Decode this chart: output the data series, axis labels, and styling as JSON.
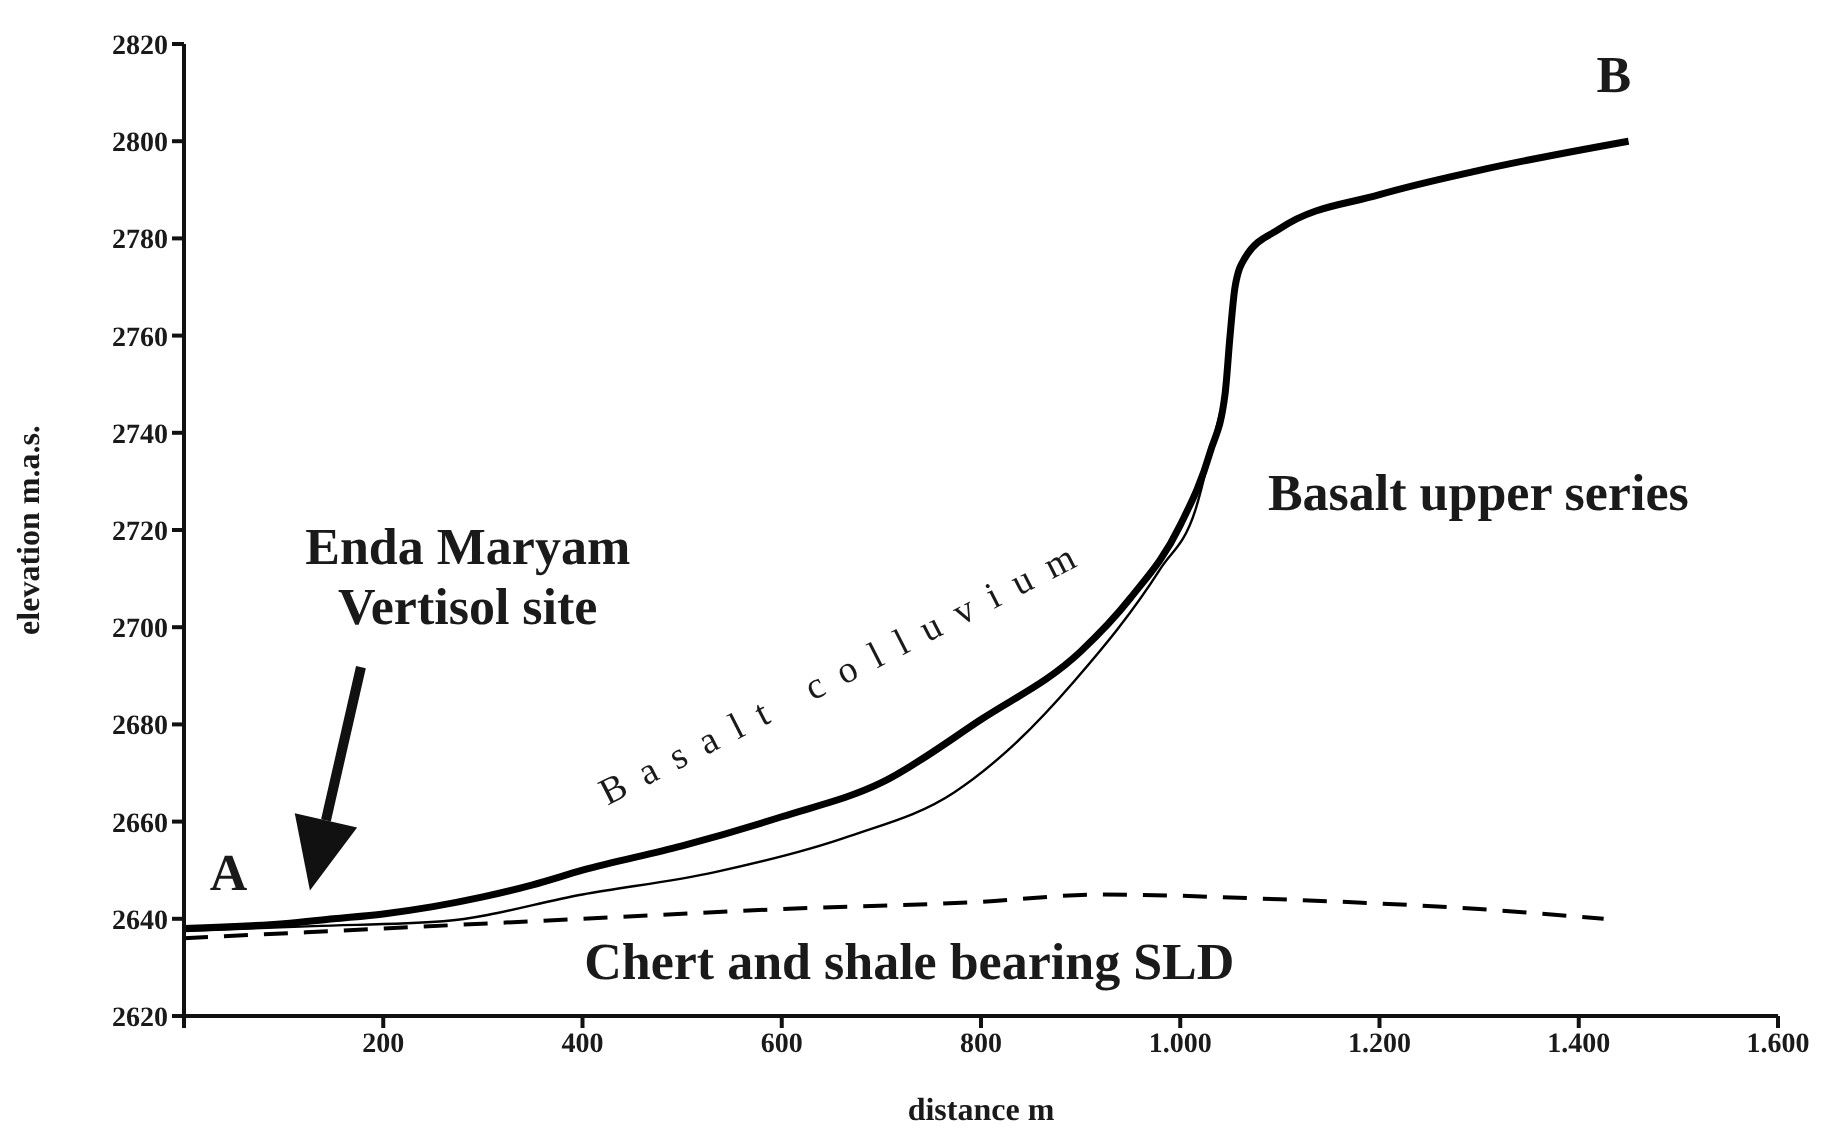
{
  "chart_data": {
    "type": "line",
    "xlabel": "distance m",
    "ylabel": "elevation m.a.s.",
    "xlim": [
      0,
      1600
    ],
    "ylim": [
      2620,
      2820
    ],
    "xticks": [
      {
        "value": 0,
        "label": null
      },
      200,
      400,
      600,
      800,
      {
        "value": 1000,
        "label": "1.000"
      },
      {
        "value": 1200,
        "label": "1.200"
      },
      {
        "value": 1400,
        "label": "1.400"
      },
      {
        "value": 1600,
        "label": "1.600"
      }
    ],
    "yticks": [
      2620,
      2640,
      2660,
      2680,
      2700,
      2720,
      2740,
      2760,
      2780,
      2800,
      2820
    ],
    "marker": "none",
    "series": [
      {
        "color": "#000000",
        "line_style": "solid",
        "x": [
          0,
          100,
          150,
          200,
          250,
          300,
          350,
          400,
          500,
          600,
          700,
          800,
          900,
          950,
          1000,
          1030,
          1045,
          1050,
          1055,
          1065,
          1100,
          1200,
          1300,
          1450
        ],
        "values": [
          2638,
          2639,
          2640,
          2641,
          2642.5,
          2644.5,
          2647,
          2650,
          2655,
          2661,
          2668,
          2681,
          2695,
          2706,
          2721,
          2736,
          2748,
          2760,
          2770,
          2776,
          2782,
          2789,
          2794,
          2800
        ]
      },
      {
        "color": "#000000",
        "line_style": "solid",
        "x": [
          0,
          130,
          260,
          400,
          533,
          668,
          773,
          826,
          894,
          980,
          1015,
          1035,
          1045
        ],
        "values": [
          2637.5,
          2638.5,
          2639.5,
          2645,
          2649.6,
          2657,
          2666,
          2674.5,
          2689,
          2712,
          2724,
          2740,
          2748
        ]
      },
      {
        "color": "#000000",
        "line_style": "dashed",
        "x": [
          0,
          200,
          400,
          600,
          800,
          920,
          1100,
          1300,
          1425
        ],
        "values": [
          2636,
          2638,
          2640,
          2642,
          2643.5,
          2645,
          2644,
          2642,
          2640
        ]
      }
    ],
    "annotations": [
      "A",
      "B",
      "Basalt colluvium",
      "Basalt upper series",
      "Enda Maryam Vertisol site",
      "Chert and shale bearing SLD"
    ]
  }
}
